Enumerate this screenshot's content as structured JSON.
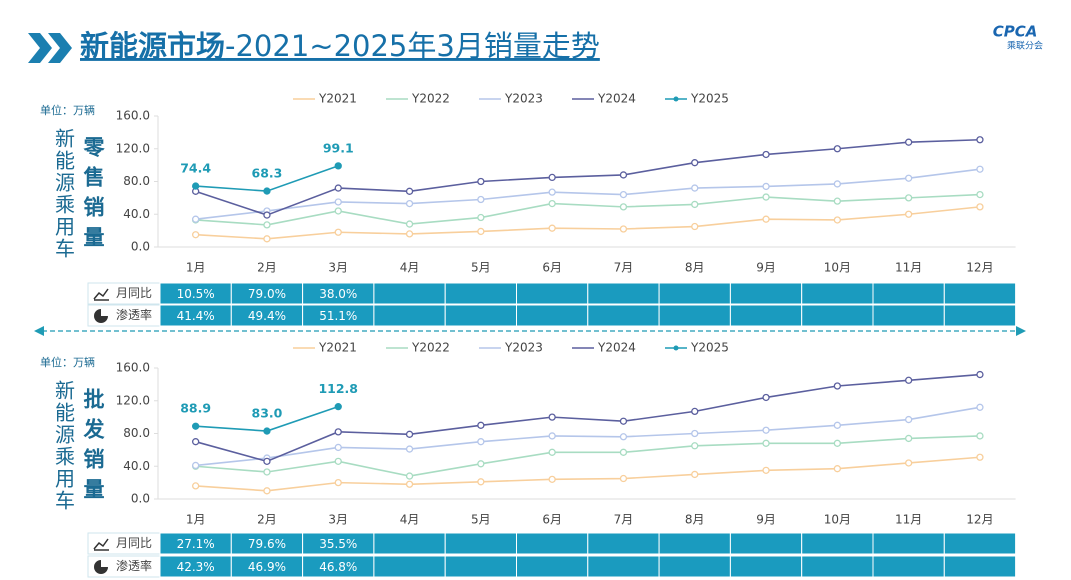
{
  "header": {
    "title_main": "新能源市场",
    "title_rest": "-2021~2025年3月销量走势",
    "logo": "CPCA",
    "logo_sub": "乘联分会"
  },
  "chart_data": [
    {
      "type": "line",
      "unit": "单位：万辆",
      "side_label": "新能源乘用车",
      "title": "零售销量",
      "categories": [
        "1月",
        "2月",
        "3月",
        "4月",
        "5月",
        "6月",
        "7月",
        "8月",
        "9月",
        "10月",
        "11月",
        "12月"
      ],
      "ylim": [
        0,
        160
      ],
      "yticks": [
        {
          "value": 0,
          "label": "0.0"
        },
        {
          "value": 40,
          "label": "40.0"
        },
        {
          "value": 80,
          "label": "80.0"
        },
        {
          "value": 120,
          "label": "120.0"
        },
        {
          "value": 160,
          "label": "160.0"
        }
      ],
      "grid": false,
      "legend": "top",
      "series": [
        {
          "name": "Y2021",
          "color": "#f8cf9c",
          "values": [
            15,
            10,
            18,
            16,
            19,
            23,
            22,
            25,
            34,
            33,
            40,
            49
          ]
        },
        {
          "name": "Y2022",
          "color": "#a8dcc2",
          "values": [
            33,
            27,
            44,
            28,
            36,
            53,
            49,
            52,
            61,
            56,
            60,
            64
          ]
        },
        {
          "name": "Y2023",
          "color": "#b5c6ea",
          "values": [
            34,
            44,
            55,
            53,
            58,
            67,
            64,
            72,
            74,
            77,
            84,
            95
          ]
        },
        {
          "name": "Y2024",
          "color": "#5b5f9e",
          "values": [
            68,
            39,
            72,
            68,
            80,
            85,
            88,
            103,
            113,
            120,
            128,
            131
          ]
        },
        {
          "name": "Y2025",
          "color": "#1f9bb5",
          "values": [
            74.4,
            68.3,
            99.1,
            null,
            null,
            null,
            null,
            null,
            null,
            null,
            null,
            null
          ],
          "value_labels": [
            "74.4",
            "68.3",
            "99.1",
            null,
            null,
            null,
            null,
            null,
            null,
            null,
            null,
            null
          ]
        }
      ],
      "table": {
        "rows": [
          {
            "label": "月同比",
            "cells": [
              "10.5%",
              "79.0%",
              "38.0%"
            ]
          },
          {
            "label": "渗透率",
            "cells": [
              "41.4%",
              "49.4%",
              "51.1%"
            ]
          }
        ]
      }
    },
    {
      "type": "line",
      "unit": "单位：万辆",
      "side_label": "新能源乘用车",
      "title": "批发销量",
      "categories": [
        "1月",
        "2月",
        "3月",
        "4月",
        "5月",
        "6月",
        "7月",
        "8月",
        "9月",
        "10月",
        "11月",
        "12月"
      ],
      "ylim": [
        0,
        160
      ],
      "yticks": [
        {
          "value": 0,
          "label": "0.0"
        },
        {
          "value": 40,
          "label": "40.0"
        },
        {
          "value": 80,
          "label": "80.0"
        },
        {
          "value": 120,
          "label": "120.0"
        },
        {
          "value": 160,
          "label": "160.0"
        }
      ],
      "grid": false,
      "legend": "top",
      "series": [
        {
          "name": "Y2021",
          "color": "#f8cf9c",
          "values": [
            16,
            10,
            20,
            18,
            21,
            24,
            25,
            30,
            35,
            37,
            44,
            51
          ]
        },
        {
          "name": "Y2022",
          "color": "#a8dcc2",
          "values": [
            40,
            33,
            46,
            28,
            43,
            57,
            57,
            65,
            68,
            68,
            74,
            77
          ]
        },
        {
          "name": "Y2023",
          "color": "#b5c6ea",
          "values": [
            41,
            50,
            63,
            61,
            70,
            77,
            76,
            80,
            84,
            90,
            97,
            112
          ]
        },
        {
          "name": "Y2024",
          "color": "#5b5f9e",
          "values": [
            70,
            46,
            82,
            79,
            90,
            100,
            95,
            107,
            124,
            138,
            145,
            152
          ]
        },
        {
          "name": "Y2025",
          "color": "#1f9bb5",
          "values": [
            88.9,
            83.0,
            112.8,
            null,
            null,
            null,
            null,
            null,
            null,
            null,
            null,
            null
          ],
          "value_labels": [
            "88.9",
            "83.0",
            "112.8",
            null,
            null,
            null,
            null,
            null,
            null,
            null,
            null,
            null
          ]
        }
      ],
      "table": {
        "rows": [
          {
            "label": "月同比",
            "cells": [
              "27.1%",
              "79.6%",
              "35.5%"
            ]
          },
          {
            "label": "渗透率",
            "cells": [
              "42.3%",
              "46.9%",
              "46.8%"
            ]
          }
        ]
      }
    }
  ]
}
